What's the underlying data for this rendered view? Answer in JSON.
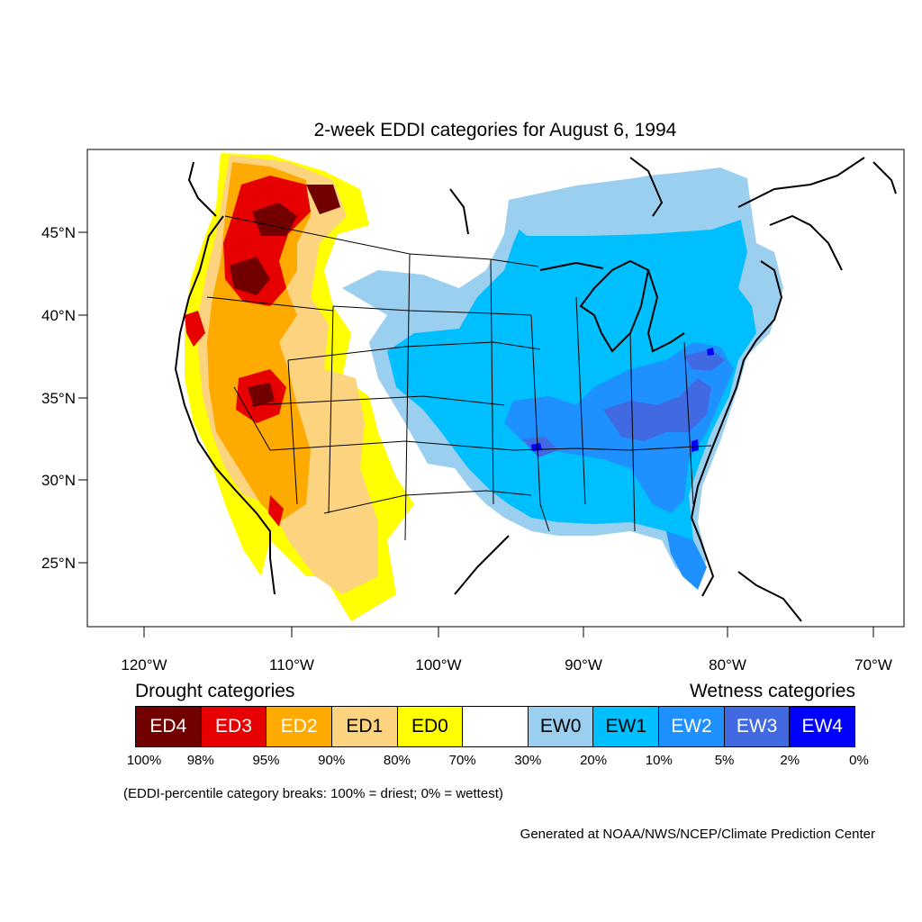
{
  "title": "2-week EDDI categories for August 6, 1994",
  "axes": {
    "lat_ticks": [
      "45°N",
      "40°N",
      "35°N",
      "30°N",
      "25°N"
    ],
    "lon_ticks": [
      "120°W",
      "110°W",
      "100°W",
      "90°W",
      "80°W",
      "70°W"
    ]
  },
  "legend": {
    "drought_heading": "Drought categories",
    "wetness_heading": "Wetness categories",
    "categories": [
      {
        "label": "ED4",
        "color": "#730000",
        "text_color": "#ffffff"
      },
      {
        "label": "ED3",
        "color": "#e60000",
        "text_color": "#ffffff"
      },
      {
        "label": "ED2",
        "color": "#ffaa00",
        "text_color": "#ffffff"
      },
      {
        "label": "ED1",
        "color": "#fcd37f",
        "text_color": "#000000"
      },
      {
        "label": "ED0",
        "color": "#ffff00",
        "text_color": "#000000"
      },
      {
        "label": "",
        "color": "#ffffff",
        "text_color": "#000000"
      },
      {
        "label": "EW0",
        "color": "#9bcfef",
        "text_color": "#000000"
      },
      {
        "label": "EW1",
        "color": "#00bfff",
        "text_color": "#000000"
      },
      {
        "label": "EW2",
        "color": "#1e90ff",
        "text_color": "#ffffff"
      },
      {
        "label": "EW3",
        "color": "#4169e1",
        "text_color": "#ffffff"
      },
      {
        "label": "EW4",
        "color": "#0000ff",
        "text_color": "#ffffff"
      }
    ],
    "breaks": [
      "100%",
      "98%",
      "95%",
      "90%",
      "80%",
      "70%",
      "30%",
      "20%",
      "10%",
      "5%",
      "2%",
      "0%"
    ]
  },
  "note": "(EDDI-percentile category breaks: 100% = driest; 0% = wettest)",
  "credit": "Generated at NOAA/NWS/NCEP/Climate Prediction Center"
}
